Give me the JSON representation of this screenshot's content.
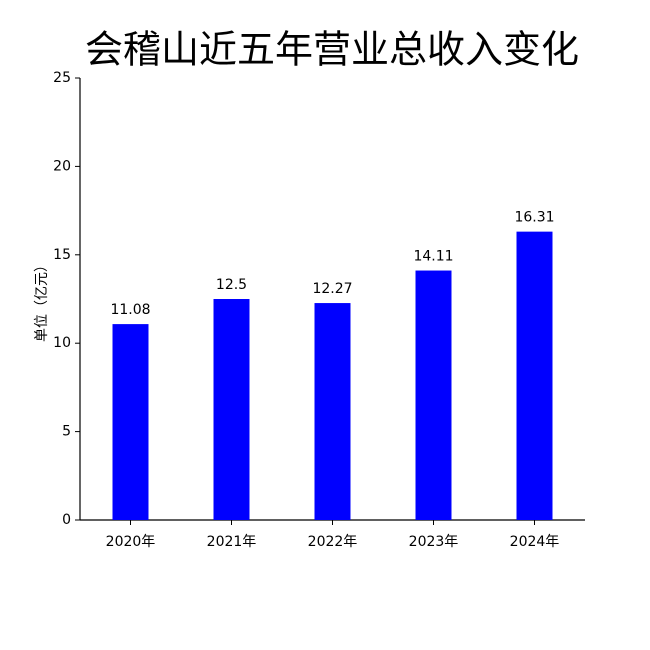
{
  "chart_data": {
    "type": "bar",
    "title": "会稽山近五年营业总收入变化",
    "y_label": "单位（亿元）",
    "categories": [
      "2020年",
      "2021年",
      "2022年",
      "2023年",
      "2024年"
    ],
    "values": [
      11.08,
      12.5,
      12.27,
      14.11,
      16.31
    ],
    "color": "#0000ff",
    "ylim": [
      0,
      25
    ],
    "yticks": [
      0,
      5,
      10,
      15,
      20,
      25
    ],
    "data_labels": true
  }
}
